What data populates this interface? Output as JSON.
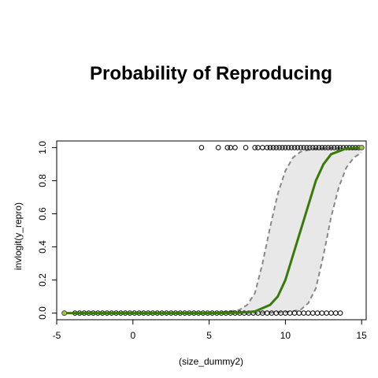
{
  "chart_data": {
    "type": "scatter",
    "title": "Probability of Reproducing",
    "xlabel": "(size_dummy2)",
    "ylabel": "invlogit(y_repro)",
    "xlim": [
      -5,
      15.3
    ],
    "ylim": [
      -0.04,
      1.04
    ],
    "x_ticks": [
      -5,
      0,
      5,
      10,
      15
    ],
    "y_ticks": [
      0.0,
      0.2,
      0.4,
      0.6,
      0.8,
      1.0
    ],
    "x_tick_labels": [
      "-5",
      "0",
      "5",
      "10",
      "15"
    ],
    "y_tick_labels": [
      "0.0",
      "0.2",
      "0.4",
      "0.6",
      "0.8",
      "1.0"
    ],
    "grid": false,
    "legend": "none",
    "colors": {
      "fit_line": "#3a7a0a",
      "band_fill": "#e8e8e8",
      "band_edge": "#888888",
      "points": "#000000",
      "end_points": "#9acd32"
    },
    "series": [
      {
        "values": [
          {
            "x": -4.5,
            "y": 0
          },
          {
            "x": -3.8,
            "y": 0
          },
          {
            "x": -3.5,
            "y": 0
          },
          {
            "x": -3.2,
            "y": 0
          },
          {
            "x": -2.9,
            "y": 0
          },
          {
            "x": -2.6,
            "y": 0
          },
          {
            "x": -2.3,
            "y": 0
          },
          {
            "x": -2.0,
            "y": 0
          },
          {
            "x": -1.7,
            "y": 0
          },
          {
            "x": -1.4,
            "y": 0
          },
          {
            "x": -1.1,
            "y": 0
          },
          {
            "x": -0.8,
            "y": 0
          },
          {
            "x": -0.5,
            "y": 0
          },
          {
            "x": -0.2,
            "y": 0
          },
          {
            "x": 0.1,
            "y": 0
          },
          {
            "x": 0.4,
            "y": 0
          },
          {
            "x": 0.7,
            "y": 0
          },
          {
            "x": 1.0,
            "y": 0
          },
          {
            "x": 1.3,
            "y": 0
          },
          {
            "x": 1.6,
            "y": 0
          },
          {
            "x": 1.9,
            "y": 0
          },
          {
            "x": 2.2,
            "y": 0
          },
          {
            "x": 2.5,
            "y": 0
          },
          {
            "x": 2.8,
            "y": 0
          },
          {
            "x": 3.1,
            "y": 0
          },
          {
            "x": 3.4,
            "y": 0
          },
          {
            "x": 3.7,
            "y": 0
          },
          {
            "x": 4.0,
            "y": 0
          },
          {
            "x": 4.3,
            "y": 0
          },
          {
            "x": 4.6,
            "y": 0
          },
          {
            "x": 4.9,
            "y": 0
          },
          {
            "x": 5.2,
            "y": 0
          },
          {
            "x": 5.5,
            "y": 0
          },
          {
            "x": 5.8,
            "y": 0
          },
          {
            "x": 6.1,
            "y": 0
          },
          {
            "x": 6.4,
            "y": 0
          },
          {
            "x": 6.7,
            "y": 0
          },
          {
            "x": 7.0,
            "y": 0
          },
          {
            "x": 7.3,
            "y": 0
          },
          {
            "x": 7.6,
            "y": 0
          },
          {
            "x": 7.9,
            "y": 0
          },
          {
            "x": 8.2,
            "y": 0
          },
          {
            "x": 8.5,
            "y": 0
          },
          {
            "x": 8.8,
            "y": 0
          },
          {
            "x": 9.1,
            "y": 0
          },
          {
            "x": 9.4,
            "y": 0
          },
          {
            "x": 9.7,
            "y": 0
          },
          {
            "x": 10.0,
            "y": 0
          },
          {
            "x": 10.3,
            "y": 0
          },
          {
            "x": 10.6,
            "y": 0
          },
          {
            "x": 10.9,
            "y": 0
          },
          {
            "x": 11.2,
            "y": 0
          },
          {
            "x": 11.5,
            "y": 0
          },
          {
            "x": 11.8,
            "y": 0
          },
          {
            "x": 12.1,
            "y": 0
          },
          {
            "x": 12.4,
            "y": 0
          },
          {
            "x": 12.7,
            "y": 0
          },
          {
            "x": 13.0,
            "y": 0
          },
          {
            "x": 13.3,
            "y": 0
          },
          {
            "x": 13.6,
            "y": 0
          },
          {
            "x": 4.5,
            "y": 1
          },
          {
            "x": 5.6,
            "y": 1
          },
          {
            "x": 6.2,
            "y": 1
          },
          {
            "x": 6.4,
            "y": 1
          },
          {
            "x": 6.7,
            "y": 1
          },
          {
            "x": 7.4,
            "y": 1
          },
          {
            "x": 8.0,
            "y": 1
          },
          {
            "x": 8.2,
            "y": 1
          },
          {
            "x": 8.5,
            "y": 1
          },
          {
            "x": 8.8,
            "y": 1
          },
          {
            "x": 9.0,
            "y": 1
          },
          {
            "x": 9.2,
            "y": 1
          },
          {
            "x": 9.4,
            "y": 1
          },
          {
            "x": 9.6,
            "y": 1
          },
          {
            "x": 9.8,
            "y": 1
          },
          {
            "x": 10.0,
            "y": 1
          },
          {
            "x": 10.2,
            "y": 1
          },
          {
            "x": 10.4,
            "y": 1
          },
          {
            "x": 10.6,
            "y": 1
          },
          {
            "x": 10.8,
            "y": 1
          },
          {
            "x": 11.0,
            "y": 1
          },
          {
            "x": 11.2,
            "y": 1
          },
          {
            "x": 11.4,
            "y": 1
          },
          {
            "x": 11.6,
            "y": 1
          },
          {
            "x": 11.8,
            "y": 1
          },
          {
            "x": 12.0,
            "y": 1
          },
          {
            "x": 12.2,
            "y": 1
          },
          {
            "x": 12.4,
            "y": 1
          },
          {
            "x": 12.6,
            "y": 1
          },
          {
            "x": 12.8,
            "y": 1
          },
          {
            "x": 13.0,
            "y": 1
          },
          {
            "x": 13.2,
            "y": 1
          },
          {
            "x": 13.4,
            "y": 1
          },
          {
            "x": 13.6,
            "y": 1
          },
          {
            "x": 13.8,
            "y": 1
          },
          {
            "x": 14.0,
            "y": 1
          },
          {
            "x": 14.2,
            "y": 1
          },
          {
            "x": 14.4,
            "y": 1
          },
          {
            "x": 14.6,
            "y": 1
          },
          {
            "x": 14.8,
            "y": 1
          }
        ]
      },
      {
        "values": [
          {
            "x": -4.5,
            "y": 0.0
          },
          {
            "x": 0.0,
            "y": 0.0
          },
          {
            "x": 5.0,
            "y": 0.0
          },
          {
            "x": 7.0,
            "y": 0.002
          },
          {
            "x": 8.0,
            "y": 0.01
          },
          {
            "x": 9.0,
            "y": 0.05
          },
          {
            "x": 9.5,
            "y": 0.1
          },
          {
            "x": 10.0,
            "y": 0.2
          },
          {
            "x": 10.5,
            "y": 0.35
          },
          {
            "x": 11.0,
            "y": 0.5
          },
          {
            "x": 11.5,
            "y": 0.65
          },
          {
            "x": 12.0,
            "y": 0.8
          },
          {
            "x": 12.5,
            "y": 0.9
          },
          {
            "x": 13.0,
            "y": 0.96
          },
          {
            "x": 14.0,
            "y": 0.995
          },
          {
            "x": 15.0,
            "y": 1.0
          }
        ]
      },
      {
        "values": [
          {
            "x": -4.5,
            "y": 0.0
          },
          {
            "x": 0.0,
            "y": 0.0
          },
          {
            "x": 5.0,
            "y": 0.001
          },
          {
            "x": 6.0,
            "y": 0.005
          },
          {
            "x": 7.0,
            "y": 0.02
          },
          {
            "x": 7.5,
            "y": 0.05
          },
          {
            "x": 8.0,
            "y": 0.12
          },
          {
            "x": 8.5,
            "y": 0.3
          },
          {
            "x": 9.0,
            "y": 0.52
          },
          {
            "x": 9.5,
            "y": 0.72
          },
          {
            "x": 10.0,
            "y": 0.86
          },
          {
            "x": 10.5,
            "y": 0.94
          },
          {
            "x": 11.0,
            "y": 0.975
          },
          {
            "x": 12.0,
            "y": 0.995
          },
          {
            "x": 15.0,
            "y": 1.0
          }
        ]
      },
      {
        "values": [
          {
            "x": -4.5,
            "y": 0.0
          },
          {
            "x": 8.0,
            "y": 0.0
          },
          {
            "x": 10.0,
            "y": 0.005
          },
          {
            "x": 11.0,
            "y": 0.02
          },
          {
            "x": 11.5,
            "y": 0.06
          },
          {
            "x": 12.0,
            "y": 0.15
          },
          {
            "x": 12.5,
            "y": 0.35
          },
          {
            "x": 13.0,
            "y": 0.58
          },
          {
            "x": 13.5,
            "y": 0.76
          },
          {
            "x": 14.0,
            "y": 0.88
          },
          {
            "x": 14.5,
            "y": 0.94
          },
          {
            "x": 15.0,
            "y": 0.97
          }
        ]
      }
    ],
    "end_points": [
      {
        "x": -4.5,
        "y": 0
      },
      {
        "x": 15.0,
        "y": 1
      }
    ]
  }
}
